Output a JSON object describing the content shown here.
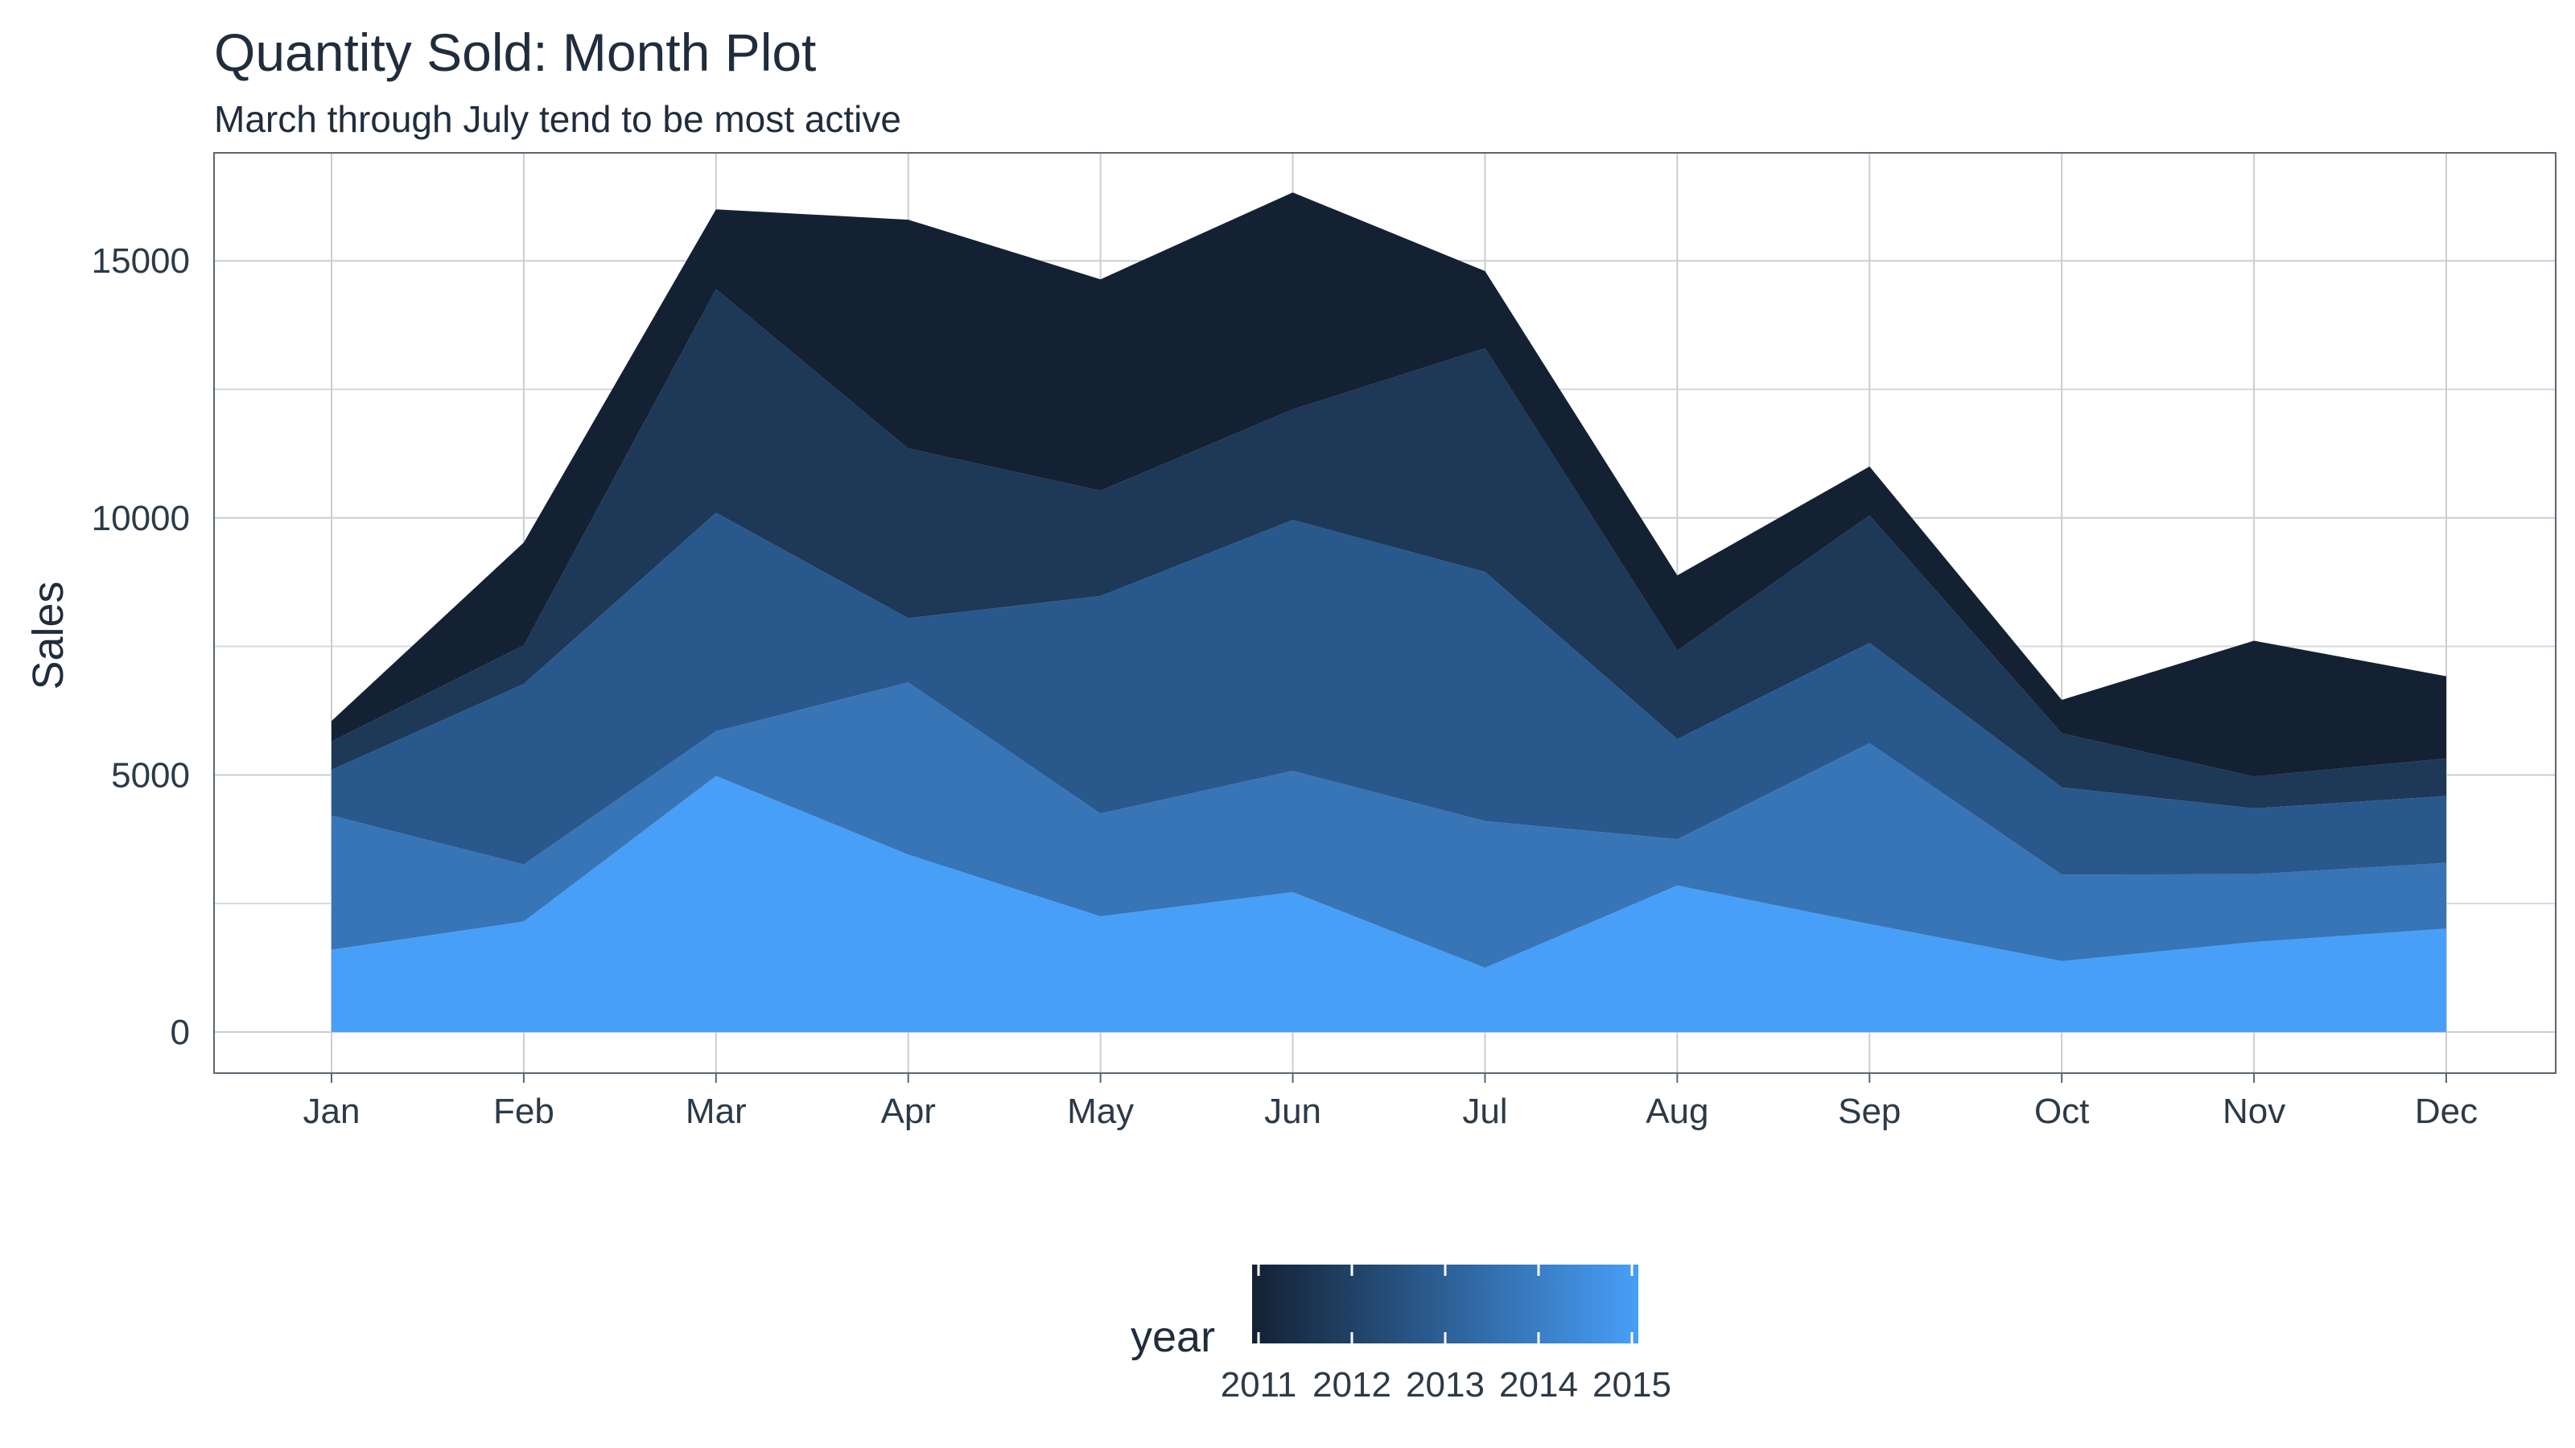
{
  "chart_data": {
    "type": "area",
    "stacked": true,
    "title": "Quantity Sold: Month Plot",
    "subtitle": "March through July tend to be most active",
    "xlabel": "",
    "ylabel": "Sales",
    "categories": [
      "Jan",
      "Feb",
      "Mar",
      "Apr",
      "May",
      "Jun",
      "Jul",
      "Aug",
      "Sep",
      "Oct",
      "Nov",
      "Dec"
    ],
    "ylim": [
      -800,
      17100
    ],
    "yticks": [
      0,
      5000,
      10000,
      15000
    ],
    "grid": true,
    "series_order_note": "",
    "series": [
      {
        "name": "2015",
        "color": "#479ff8",
        "values": [
          1600,
          2150,
          4980,
          3450,
          2250,
          2720,
          1250,
          2850,
          2100,
          1380,
          1750,
          2010
        ]
      },
      {
        "name": "2014",
        "color": "#3875b6",
        "values": [
          2610,
          1110,
          870,
          3350,
          2000,
          2360,
          2850,
          900,
          3520,
          1680,
          1320,
          1280
        ]
      },
      {
        "name": "2013",
        "color": "#29588c",
        "values": [
          890,
          3510,
          4250,
          1250,
          4230,
          4880,
          4850,
          1950,
          1950,
          1700,
          1280,
          1300
        ]
      },
      {
        "name": "2012",
        "color": "#1e3857",
        "values": [
          550,
          750,
          4350,
          3300,
          2050,
          2150,
          4350,
          1720,
          2480,
          1050,
          620,
          730
        ]
      },
      {
        "name": "2011",
        "color": "#132133",
        "values": [
          400,
          2000,
          1550,
          4450,
          4110,
          4220,
          1500,
          1460,
          950,
          650,
          2640,
          1600
        ]
      }
    ]
  },
  "legend": {
    "title": "year",
    "ticks": [
      "2011",
      "2012",
      "2013",
      "2014",
      "2015"
    ],
    "low_color": "#132133",
    "high_color": "#479ff8"
  }
}
